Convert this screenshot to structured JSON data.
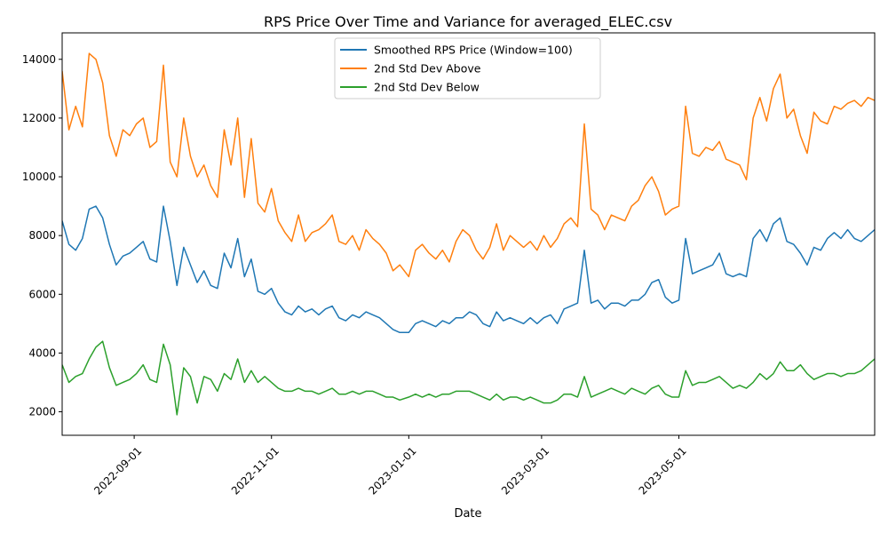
{
  "chart_data": {
    "type": "line",
    "title": "RPS Price Over Time and Variance for averaged_ELEC.csv",
    "xlabel": "Date",
    "ylabel": "",
    "x_range": [
      "2022-07-31",
      "2023-07-27"
    ],
    "ylim": [
      1200,
      14900
    ],
    "x_ticks": [
      "2022-09-01",
      "2022-11-01",
      "2023-01-01",
      "2023-03-01",
      "2023-05-01"
    ],
    "y_ticks": [
      2000,
      4000,
      6000,
      8000,
      10000,
      12000,
      14000
    ],
    "grid": false,
    "legend_position": "upper center",
    "x": [
      "2022-07-31",
      "2022-08-03",
      "2022-08-06",
      "2022-08-09",
      "2022-08-12",
      "2022-08-15",
      "2022-08-18",
      "2022-08-21",
      "2022-08-24",
      "2022-08-27",
      "2022-08-30",
      "2022-09-02",
      "2022-09-05",
      "2022-09-08",
      "2022-09-11",
      "2022-09-14",
      "2022-09-17",
      "2022-09-20",
      "2022-09-23",
      "2022-09-26",
      "2022-09-29",
      "2022-10-02",
      "2022-10-05",
      "2022-10-08",
      "2022-10-11",
      "2022-10-14",
      "2022-10-17",
      "2022-10-20",
      "2022-10-23",
      "2022-10-26",
      "2022-10-29",
      "2022-11-01",
      "2022-11-04",
      "2022-11-07",
      "2022-11-10",
      "2022-11-13",
      "2022-11-16",
      "2022-11-19",
      "2022-11-22",
      "2022-11-25",
      "2022-11-28",
      "2022-12-01",
      "2022-12-04",
      "2022-12-07",
      "2022-12-10",
      "2022-12-13",
      "2022-12-16",
      "2022-12-19",
      "2022-12-22",
      "2022-12-25",
      "2022-12-28",
      "2023-01-01",
      "2023-01-04",
      "2023-01-07",
      "2023-01-10",
      "2023-01-13",
      "2023-01-16",
      "2023-01-19",
      "2023-01-22",
      "2023-01-25",
      "2023-01-28",
      "2023-01-31",
      "2023-02-03",
      "2023-02-06",
      "2023-02-09",
      "2023-02-12",
      "2023-02-15",
      "2023-02-18",
      "2023-02-21",
      "2023-02-24",
      "2023-02-27",
      "2023-03-02",
      "2023-03-05",
      "2023-03-08",
      "2023-03-11",
      "2023-03-14",
      "2023-03-17",
      "2023-03-20",
      "2023-03-23",
      "2023-03-26",
      "2023-03-29",
      "2023-04-01",
      "2023-04-04",
      "2023-04-07",
      "2023-04-10",
      "2023-04-13",
      "2023-04-16",
      "2023-04-19",
      "2023-04-22",
      "2023-04-25",
      "2023-04-28",
      "2023-05-01",
      "2023-05-04",
      "2023-05-07",
      "2023-05-10",
      "2023-05-13",
      "2023-05-16",
      "2023-05-19",
      "2023-05-22",
      "2023-05-25",
      "2023-05-28",
      "2023-05-31",
      "2023-06-03",
      "2023-06-06",
      "2023-06-09",
      "2023-06-12",
      "2023-06-15",
      "2023-06-18",
      "2023-06-21",
      "2023-06-24",
      "2023-06-27",
      "2023-06-30",
      "2023-07-03",
      "2023-07-06",
      "2023-07-09",
      "2023-07-12",
      "2023-07-15",
      "2023-07-18",
      "2023-07-21",
      "2023-07-24",
      "2023-07-27"
    ],
    "series": [
      {
        "name": "Smoothed RPS Price (Window=100)",
        "color": "#1f77b4",
        "values": [
          8500,
          7700,
          7500,
          7900,
          8900,
          9000,
          8600,
          7700,
          7000,
          7300,
          7400,
          7600,
          7800,
          7200,
          7100,
          9000,
          7800,
          6300,
          7600,
          7000,
          6400,
          6800,
          6300,
          6200,
          7400,
          6900,
          7900,
          6600,
          7200,
          6100,
          6000,
          6200,
          5700,
          5400,
          5300,
          5600,
          5400,
          5500,
          5300,
          5500,
          5600,
          5200,
          5100,
          5300,
          5200,
          5400,
          5300,
          5200,
          5000,
          4800,
          4700,
          4700,
          5000,
          5100,
          5000,
          4900,
          5100,
          5000,
          5200,
          5200,
          5400,
          5300,
          5000,
          4900,
          5400,
          5100,
          5200,
          5100,
          5000,
          5200,
          5000,
          5200,
          5300,
          5000,
          5500,
          5600,
          5700,
          7500,
          5700,
          5800,
          5500,
          5700,
          5700,
          5600,
          5800,
          5800,
          6000,
          6400,
          6500,
          5900,
          5700,
          5800,
          7900,
          6700,
          6800,
          6900,
          7000,
          7400,
          6700,
          6600,
          6700,
          6600,
          7900,
          8200,
          7800,
          8400,
          8600,
          7800,
          7700,
          7400,
          7000,
          7600,
          7500,
          7900,
          8100,
          7900,
          8200,
          7900,
          7800,
          8000,
          8200
        ]
      },
      {
        "name": "2nd Std Dev Above",
        "color": "#ff7f0e",
        "values": [
          13600,
          11600,
          12400,
          11700,
          14200,
          14000,
          13200,
          11400,
          10700,
          11600,
          11400,
          11800,
          12000,
          11000,
          11200,
          13800,
          10500,
          10000,
          12000,
          10700,
          10000,
          10400,
          9700,
          9300,
          11600,
          10400,
          12000,
          9300,
          11300,
          9100,
          8800,
          9600,
          8500,
          8100,
          7800,
          8700,
          7800,
          8100,
          8200,
          8400,
          8700,
          7800,
          7700,
          8000,
          7500,
          8200,
          7900,
          7700,
          7400,
          6800,
          7000,
          6600,
          7500,
          7700,
          7400,
          7200,
          7500,
          7100,
          7800,
          8200,
          8000,
          7500,
          7200,
          7600,
          8400,
          7500,
          8000,
          7800,
          7600,
          7800,
          7500,
          8000,
          7600,
          7900,
          8400,
          8600,
          8300,
          11800,
          8900,
          8700,
          8200,
          8700,
          8600,
          8500,
          9000,
          9200,
          9700,
          10000,
          9500,
          8700,
          8900,
          9000,
          12400,
          10800,
          10700,
          11000,
          10900,
          11200,
          10600,
          10500,
          10400,
          9900,
          12000,
          12700,
          11900,
          13000,
          13500,
          12000,
          12300,
          11400,
          10800,
          12200,
          11900,
          11800,
          12400,
          12300,
          12500,
          12600,
          12400,
          12700,
          12600
        ]
      },
      {
        "name": "2nd Std Dev Below",
        "color": "#2ca02c",
        "values": [
          3600,
          3000,
          3200,
          3300,
          3800,
          4200,
          4400,
          3500,
          2900,
          3000,
          3100,
          3300,
          3600,
          3100,
          3000,
          4300,
          3600,
          1900,
          3500,
          3200,
          2300,
          3200,
          3100,
          2700,
          3300,
          3100,
          3800,
          3000,
          3400,
          3000,
          3200,
          3000,
          2800,
          2700,
          2700,
          2800,
          2700,
          2700,
          2600,
          2700,
          2800,
          2600,
          2600,
          2700,
          2600,
          2700,
          2700,
          2600,
          2500,
          2500,
          2400,
          2500,
          2600,
          2500,
          2600,
          2500,
          2600,
          2600,
          2700,
          2700,
          2700,
          2600,
          2500,
          2400,
          2600,
          2400,
          2500,
          2500,
          2400,
          2500,
          2400,
          2300,
          2300,
          2400,
          2600,
          2600,
          2500,
          3200,
          2500,
          2600,
          2700,
          2800,
          2700,
          2600,
          2800,
          2700,
          2600,
          2800,
          2900,
          2600,
          2500,
          2500,
          3400,
          2900,
          3000,
          3000,
          3100,
          3200,
          3000,
          2800,
          2900,
          2800,
          3000,
          3300,
          3100,
          3300,
          3700,
          3400,
          3400,
          3600,
          3300,
          3100,
          3200,
          3300,
          3300,
          3200,
          3300,
          3300,
          3400,
          3600,
          3800
        ]
      }
    ]
  }
}
